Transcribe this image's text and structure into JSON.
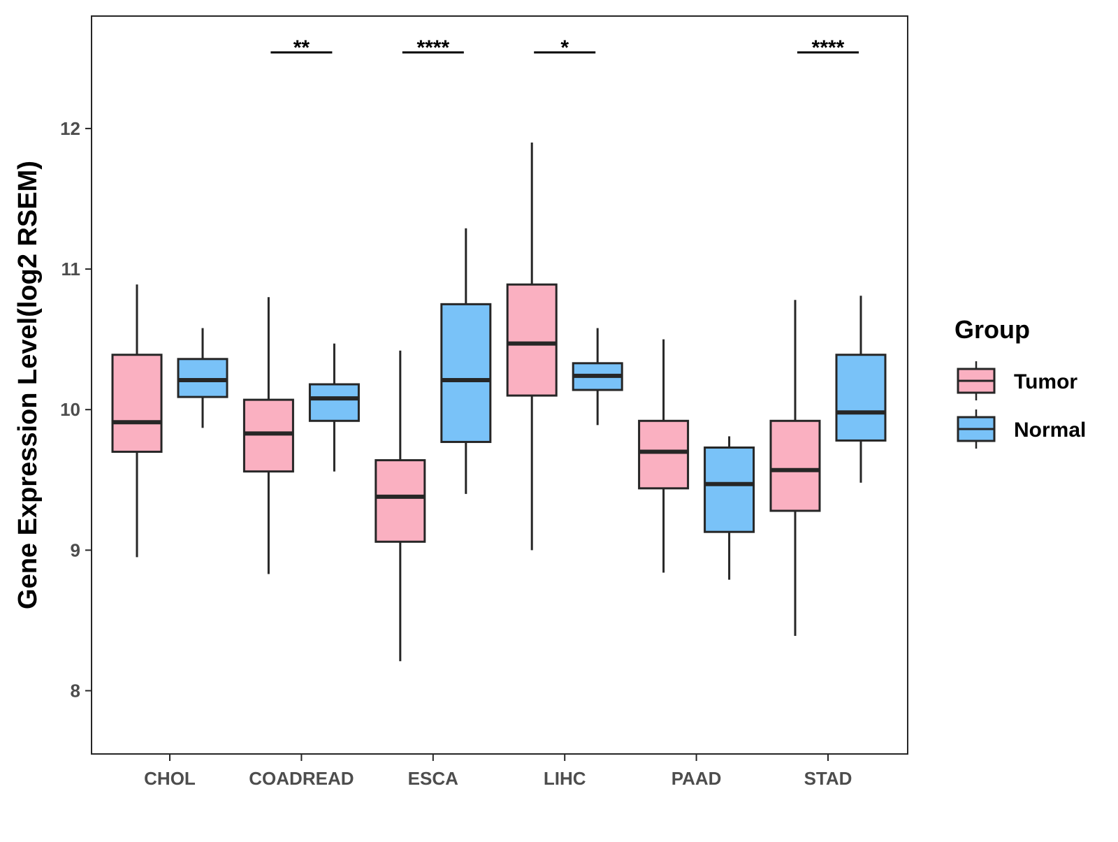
{
  "chart_data": {
    "type": "boxplot",
    "title": "",
    "xlabel": "",
    "ylabel": "Gene Expression Level(log2 RSEM)",
    "ylim": [
      7.55,
      12.8
    ],
    "yticks": [
      8,
      9,
      10,
      11,
      12
    ],
    "grid": false,
    "legend": {
      "title": "Group",
      "position": "right",
      "entries": [
        {
          "name": "Tumor",
          "color": "#FAB0C1"
        },
        {
          "name": "Normal",
          "color": "#79C2F8"
        }
      ]
    },
    "categories": [
      "CHOL",
      "COADREAD",
      "ESCA",
      "LIHC",
      "PAAD",
      "STAD"
    ],
    "series": [
      {
        "name": "Tumor",
        "color": "#FAB0C1",
        "boxes": [
          {
            "category": "CHOL",
            "whisker_low": 8.95,
            "q1": 9.7,
            "median": 9.91,
            "q3": 10.39,
            "whisker_high": 10.89
          },
          {
            "category": "COADREAD",
            "whisker_low": 8.83,
            "q1": 9.56,
            "median": 9.83,
            "q3": 10.07,
            "whisker_high": 10.8
          },
          {
            "category": "ESCA",
            "whisker_low": 8.21,
            "q1": 9.06,
            "median": 9.38,
            "q3": 9.64,
            "whisker_high": 10.42
          },
          {
            "category": "LIHC",
            "whisker_low": 9.0,
            "q1": 10.1,
            "median": 10.47,
            "q3": 10.89,
            "whisker_high": 11.9
          },
          {
            "category": "PAAD",
            "whisker_low": 8.84,
            "q1": 9.44,
            "median": 9.7,
            "q3": 9.92,
            "whisker_high": 10.5
          },
          {
            "category": "STAD",
            "whisker_low": 8.39,
            "q1": 9.28,
            "median": 9.57,
            "q3": 9.92,
            "whisker_high": 10.78
          }
        ]
      },
      {
        "name": "Normal",
        "color": "#79C2F8",
        "boxes": [
          {
            "category": "CHOL",
            "whisker_low": 9.87,
            "q1": 10.09,
            "median": 10.21,
            "q3": 10.36,
            "whisker_high": 10.58
          },
          {
            "category": "COADREAD",
            "whisker_low": 9.56,
            "q1": 9.92,
            "median": 10.08,
            "q3": 10.18,
            "whisker_high": 10.47
          },
          {
            "category": "ESCA",
            "whisker_low": 9.4,
            "q1": 9.77,
            "median": 10.21,
            "q3": 10.75,
            "whisker_high": 11.29
          },
          {
            "category": "LIHC",
            "whisker_low": 9.89,
            "q1": 10.14,
            "median": 10.24,
            "q3": 10.33,
            "whisker_high": 10.58
          },
          {
            "category": "PAAD",
            "whisker_low": 8.79,
            "q1": 9.13,
            "median": 9.47,
            "q3": 9.73,
            "whisker_high": 9.81
          },
          {
            "category": "STAD",
            "whisker_low": 9.48,
            "q1": 9.78,
            "median": 9.98,
            "q3": 10.39,
            "whisker_high": 10.81
          }
        ]
      }
    ],
    "significance": [
      {
        "category": "COADREAD",
        "label": "**"
      },
      {
        "category": "ESCA",
        "label": "****"
      },
      {
        "category": "LIHC",
        "label": "*"
      },
      {
        "category": "STAD",
        "label": "****"
      }
    ],
    "colors": {
      "outline": "#262626",
      "axis_text": "#4d4d4d"
    }
  }
}
